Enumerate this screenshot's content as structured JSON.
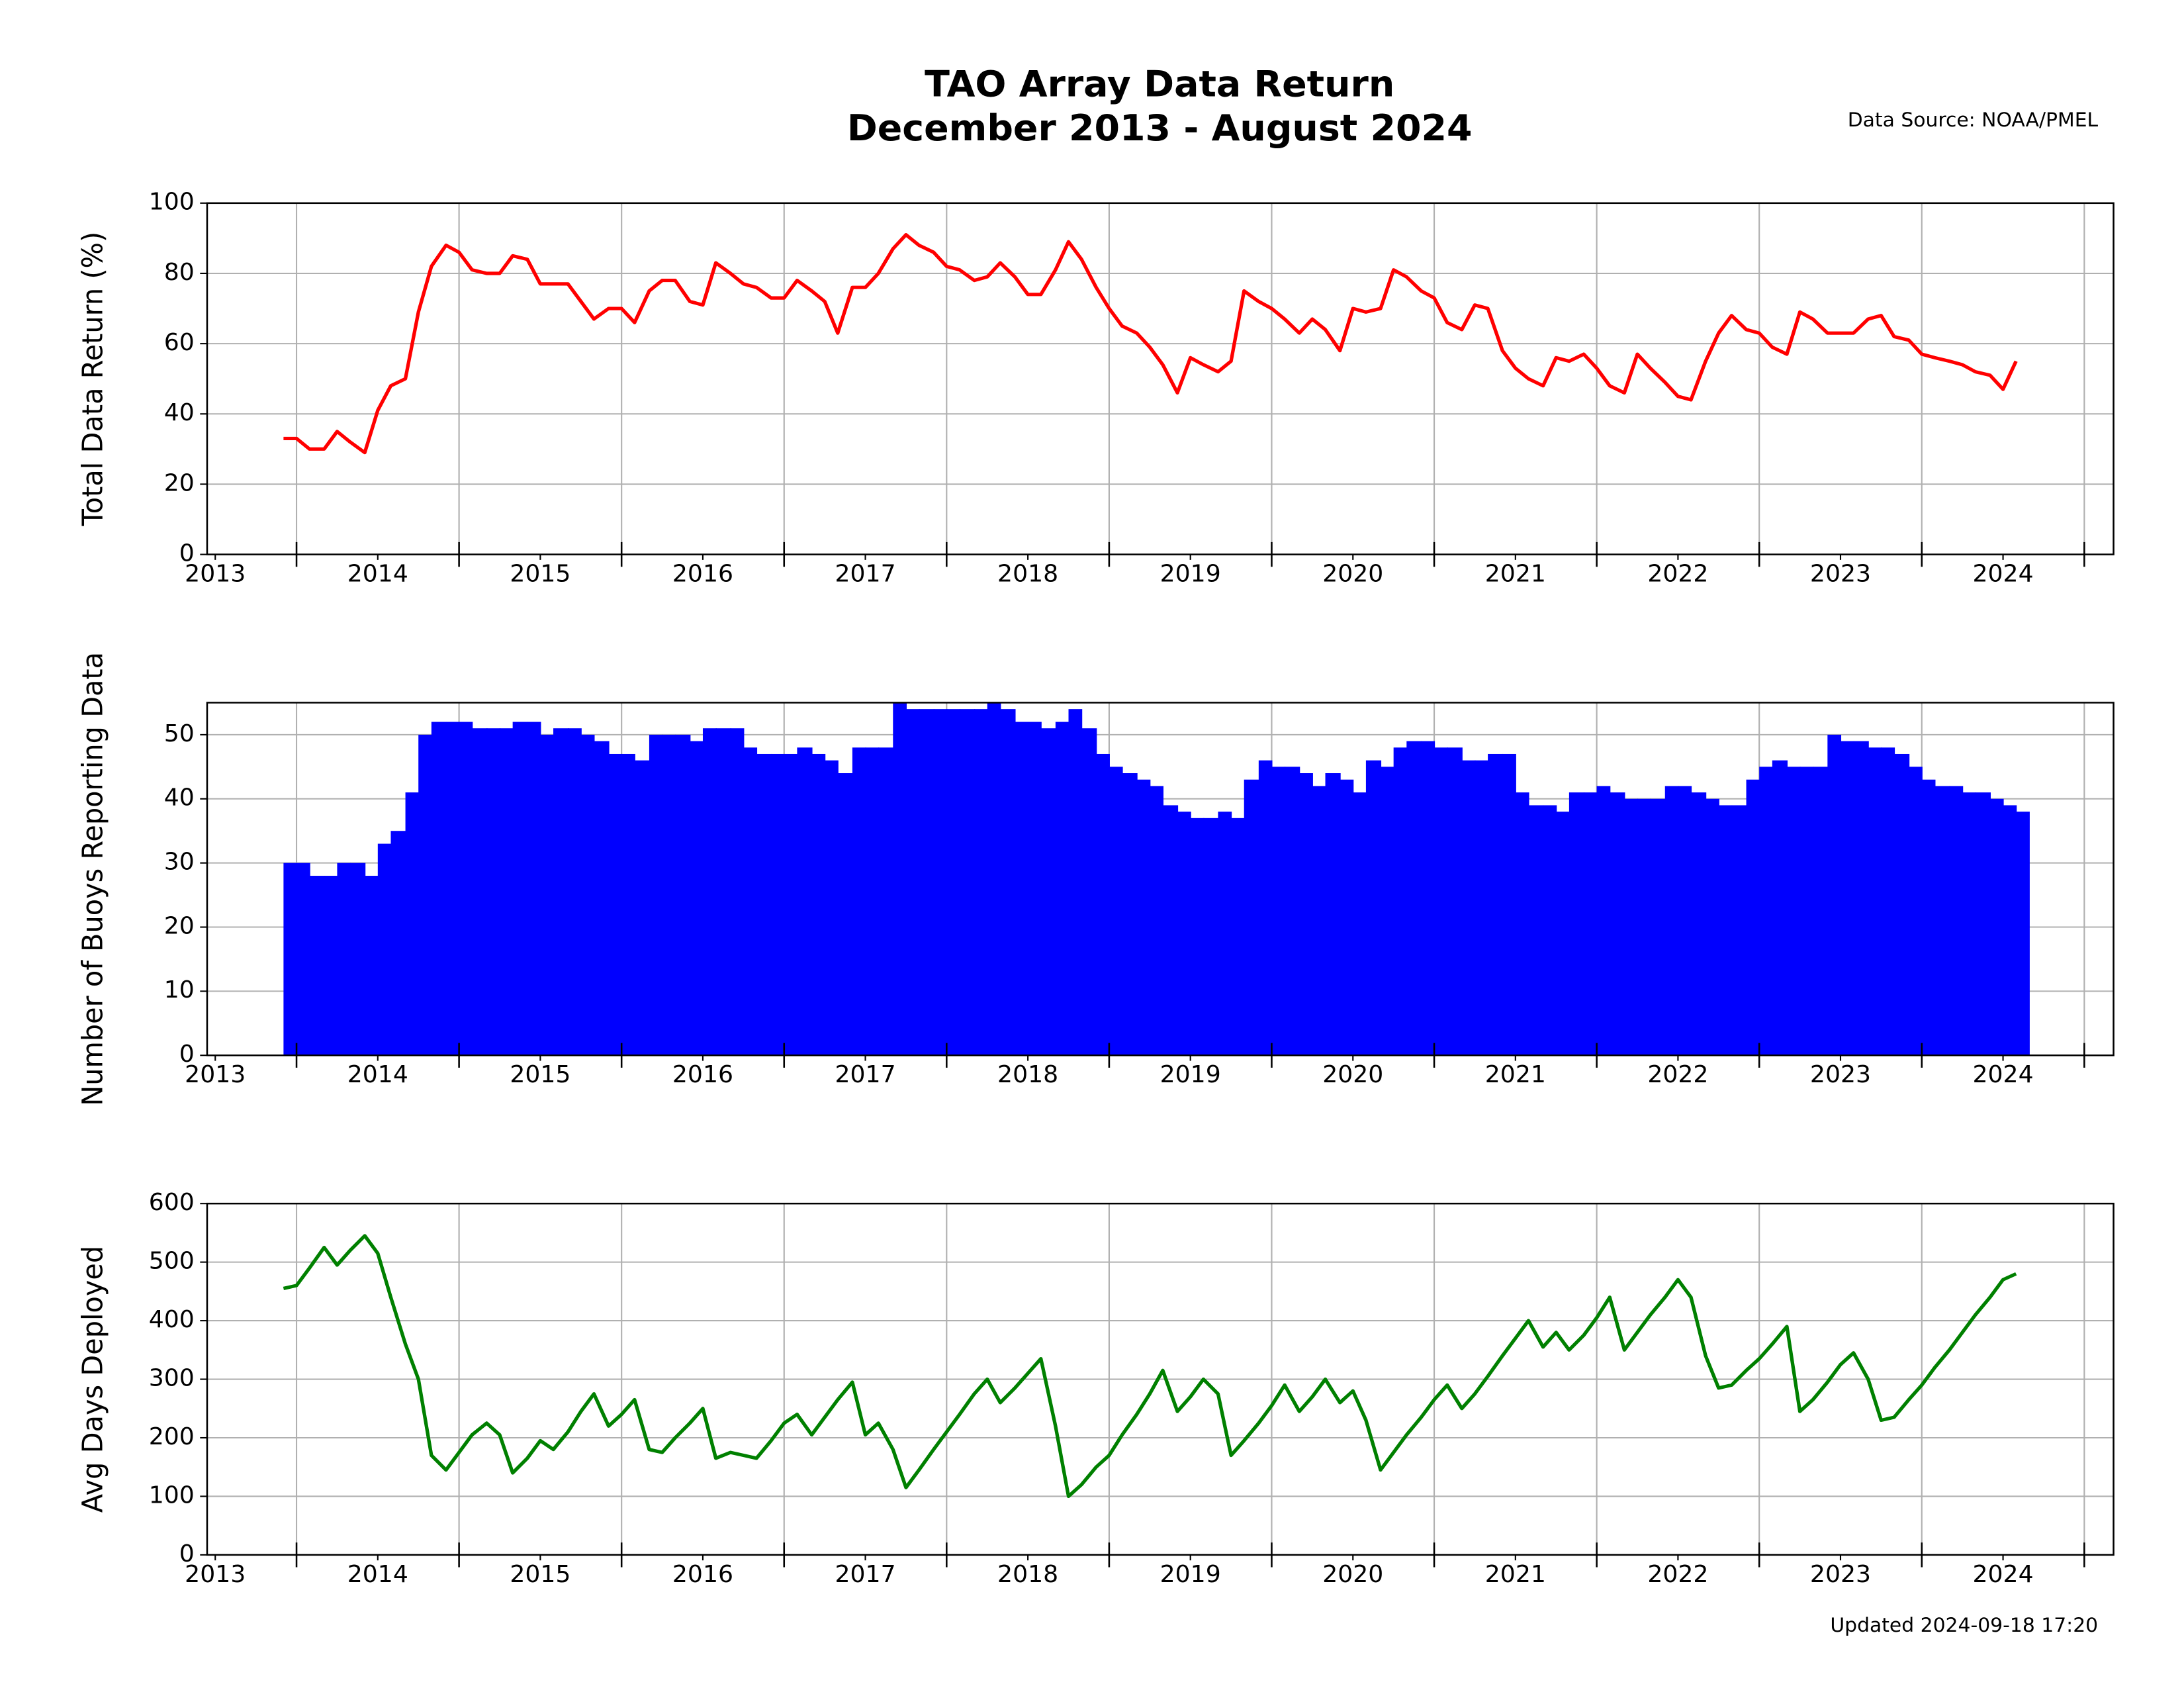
{
  "title": "TAO Array Data Return",
  "subtitle": "December 2013 - August 2024",
  "source": "Data Source: NOAA/PMEL",
  "updated": "Updated 2024-09-18 17:20",
  "chart_data": [
    {
      "type": "line",
      "ylabel": "Total Data Return (%)",
      "color": "#ff0000",
      "grid": true,
      "xlim": [
        2013.45,
        2025.18
      ],
      "ylim": [
        0,
        100
      ],
      "yticks": [
        0,
        20,
        40,
        60,
        80,
        100
      ],
      "x_major_ticks": [
        2014,
        2015,
        2016,
        2017,
        2018,
        2019,
        2020,
        2021,
        2022,
        2023,
        2024,
        2025
      ],
      "xticks": [
        {
          "value": 2013.5,
          "label": "2013"
        },
        {
          "value": 2014.5,
          "label": "2014"
        },
        {
          "value": 2015.5,
          "label": "2015"
        },
        {
          "value": 2016.5,
          "label": "2016"
        },
        {
          "value": 2017.5,
          "label": "2017"
        },
        {
          "value": 2018.5,
          "label": "2018"
        },
        {
          "value": 2019.5,
          "label": "2019"
        },
        {
          "value": 2020.5,
          "label": "2020"
        },
        {
          "value": 2021.5,
          "label": "2021"
        },
        {
          "value": 2022.5,
          "label": "2022"
        },
        {
          "value": 2023.5,
          "label": "2023"
        },
        {
          "value": 2024.5,
          "label": "2024"
        }
      ],
      "x": [
        2013.92,
        2014.0,
        2014.08,
        2014.17,
        2014.25,
        2014.33,
        2014.42,
        2014.5,
        2014.58,
        2014.67,
        2014.75,
        2014.83,
        2014.92,
        2015.0,
        2015.08,
        2015.17,
        2015.25,
        2015.33,
        2015.42,
        2015.5,
        2015.58,
        2015.67,
        2015.75,
        2015.83,
        2015.92,
        2016.0,
        2016.08,
        2016.17,
        2016.25,
        2016.33,
        2016.42,
        2016.5,
        2016.58,
        2016.67,
        2016.75,
        2016.83,
        2016.92,
        2017.0,
        2017.08,
        2017.17,
        2017.25,
        2017.33,
        2017.42,
        2017.5,
        2017.58,
        2017.67,
        2017.75,
        2017.83,
        2017.92,
        2018.0,
        2018.08,
        2018.17,
        2018.25,
        2018.33,
        2018.42,
        2018.5,
        2018.58,
        2018.67,
        2018.75,
        2018.83,
        2018.92,
        2019.0,
        2019.08,
        2019.17,
        2019.25,
        2019.33,
        2019.42,
        2019.5,
        2019.58,
        2019.67,
        2019.75,
        2019.83,
        2019.92,
        2020.0,
        2020.08,
        2020.17,
        2020.25,
        2020.33,
        2020.42,
        2020.5,
        2020.58,
        2020.67,
        2020.75,
        2020.83,
        2020.92,
        2021.0,
        2021.08,
        2021.17,
        2021.25,
        2021.33,
        2021.42,
        2021.5,
        2021.58,
        2021.67,
        2021.75,
        2021.83,
        2021.92,
        2022.0,
        2022.08,
        2022.17,
        2022.25,
        2022.33,
        2022.42,
        2022.5,
        2022.58,
        2022.67,
        2022.75,
        2022.83,
        2022.92,
        2023.0,
        2023.08,
        2023.17,
        2023.25,
        2023.33,
        2023.42,
        2023.5,
        2023.58,
        2023.67,
        2023.75,
        2023.83,
        2023.92,
        2024.0,
        2024.08,
        2024.17,
        2024.25,
        2024.33,
        2024.42,
        2024.5,
        2024.58
      ],
      "values": [
        33,
        33,
        30,
        30,
        35,
        32,
        29,
        41,
        48,
        50,
        69,
        82,
        88,
        86,
        81,
        80,
        80,
        85,
        84,
        77,
        77,
        77,
        72,
        67,
        70,
        70,
        66,
        75,
        78,
        78,
        72,
        71,
        83,
        80,
        77,
        76,
        73,
        73,
        78,
        75,
        72,
        63,
        76,
        76,
        80,
        87,
        91,
        88,
        86,
        82,
        81,
        78,
        79,
        83,
        79,
        74,
        74,
        81,
        89,
        84,
        76,
        70,
        65,
        63,
        59,
        54,
        46,
        56,
        54,
        52,
        55,
        75,
        72,
        70,
        67,
        63,
        67,
        64,
        58,
        70,
        69,
        70,
        81,
        79,
        75,
        73,
        66,
        64,
        71,
        70,
        58,
        53,
        50,
        48,
        56,
        55,
        57,
        53,
        48,
        46,
        57,
        53,
        49,
        45,
        44,
        55,
        63,
        68,
        64,
        63,
        59,
        57,
        69,
        67,
        63,
        63,
        63,
        67,
        68,
        62,
        61,
        57,
        56,
        55,
        54,
        52,
        51,
        47,
        55
      ]
    },
    {
      "type": "bar",
      "ylabel": "Number of Buoys Reporting Data",
      "color": "#0000ff",
      "grid": true,
      "xlim": [
        2013.45,
        2025.18
      ],
      "ylim": [
        0,
        55
      ],
      "yticks": [
        0,
        10,
        20,
        30,
        40,
        50
      ],
      "x_major_ticks": [
        2014,
        2015,
        2016,
        2017,
        2018,
        2019,
        2020,
        2021,
        2022,
        2023,
        2024,
        2025
      ],
      "xticks": [
        {
          "value": 2013.5,
          "label": "2013"
        },
        {
          "value": 2014.5,
          "label": "2014"
        },
        {
          "value": 2015.5,
          "label": "2015"
        },
        {
          "value": 2016.5,
          "label": "2016"
        },
        {
          "value": 2017.5,
          "label": "2017"
        },
        {
          "value": 2018.5,
          "label": "2018"
        },
        {
          "value": 2019.5,
          "label": "2019"
        },
        {
          "value": 2020.5,
          "label": "2020"
        },
        {
          "value": 2021.5,
          "label": "2021"
        },
        {
          "value": 2022.5,
          "label": "2022"
        },
        {
          "value": 2023.5,
          "label": "2023"
        },
        {
          "value": 2024.5,
          "label": "2024"
        }
      ],
      "x": [
        2013.92,
        2014.0,
        2014.08,
        2014.17,
        2014.25,
        2014.33,
        2014.42,
        2014.5,
        2014.58,
        2014.67,
        2014.75,
        2014.83,
        2014.92,
        2015.0,
        2015.08,
        2015.17,
        2015.25,
        2015.33,
        2015.42,
        2015.5,
        2015.58,
        2015.67,
        2015.75,
        2015.83,
        2015.92,
        2016.0,
        2016.08,
        2016.17,
        2016.25,
        2016.33,
        2016.42,
        2016.5,
        2016.58,
        2016.67,
        2016.75,
        2016.83,
        2016.92,
        2017.0,
        2017.08,
        2017.17,
        2017.25,
        2017.33,
        2017.42,
        2017.5,
        2017.58,
        2017.67,
        2017.75,
        2017.83,
        2017.92,
        2018.0,
        2018.08,
        2018.17,
        2018.25,
        2018.33,
        2018.42,
        2018.5,
        2018.58,
        2018.67,
        2018.75,
        2018.83,
        2018.92,
        2019.0,
        2019.08,
        2019.17,
        2019.25,
        2019.33,
        2019.42,
        2019.5,
        2019.58,
        2019.67,
        2019.75,
        2019.83,
        2019.92,
        2020.0,
        2020.08,
        2020.17,
        2020.25,
        2020.33,
        2020.42,
        2020.5,
        2020.58,
        2020.67,
        2020.75,
        2020.83,
        2020.92,
        2021.0,
        2021.08,
        2021.17,
        2021.25,
        2021.33,
        2021.42,
        2021.5,
        2021.58,
        2021.67,
        2021.75,
        2021.83,
        2021.92,
        2022.0,
        2022.08,
        2022.17,
        2022.25,
        2022.33,
        2022.42,
        2022.5,
        2022.58,
        2022.67,
        2022.75,
        2022.83,
        2022.92,
        2023.0,
        2023.08,
        2023.17,
        2023.25,
        2023.33,
        2023.42,
        2023.5,
        2023.58,
        2023.67,
        2023.75,
        2023.83,
        2023.92,
        2024.0,
        2024.08,
        2024.17,
        2024.25,
        2024.33,
        2024.42,
        2024.5,
        2024.58
      ],
      "values": [
        30,
        30,
        28,
        28,
        30,
        30,
        28,
        33,
        35,
        41,
        50,
        52,
        52,
        52,
        51,
        51,
        51,
        52,
        52,
        50,
        51,
        51,
        50,
        49,
        47,
        47,
        46,
        50,
        50,
        50,
        49,
        51,
        51,
        51,
        48,
        47,
        47,
        47,
        48,
        47,
        46,
        44,
        48,
        48,
        48,
        55,
        54,
        54,
        54,
        54,
        54,
        54,
        55,
        54,
        52,
        52,
        51,
        52,
        54,
        51,
        47,
        45,
        44,
        43,
        42,
        39,
        38,
        37,
        37,
        38,
        37,
        43,
        46,
        45,
        45,
        44,
        42,
        44,
        43,
        41,
        46,
        45,
        48,
        49,
        49,
        48,
        48,
        46,
        46,
        47,
        47,
        41,
        39,
        39,
        38,
        41,
        41,
        42,
        41,
        40,
        40,
        40,
        42,
        42,
        41,
        40,
        39,
        39,
        43,
        45,
        46,
        45,
        45,
        45,
        50,
        49,
        49,
        48,
        48,
        47,
        45,
        43,
        42,
        42,
        41,
        41,
        40,
        39,
        38
      ]
    },
    {
      "type": "line",
      "ylabel": "Avg Days Deployed",
      "color": "#008000",
      "grid": true,
      "xlim": [
        2013.45,
        2025.18
      ],
      "ylim": [
        0,
        600
      ],
      "yticks": [
        0,
        100,
        200,
        300,
        400,
        500,
        600
      ],
      "x_major_ticks": [
        2014,
        2015,
        2016,
        2017,
        2018,
        2019,
        2020,
        2021,
        2022,
        2023,
        2024,
        2025
      ],
      "xticks": [
        {
          "value": 2013.5,
          "label": "2013"
        },
        {
          "value": 2014.5,
          "label": "2014"
        },
        {
          "value": 2015.5,
          "label": "2015"
        },
        {
          "value": 2016.5,
          "label": "2016"
        },
        {
          "value": 2017.5,
          "label": "2017"
        },
        {
          "value": 2018.5,
          "label": "2018"
        },
        {
          "value": 2019.5,
          "label": "2019"
        },
        {
          "value": 2020.5,
          "label": "2020"
        },
        {
          "value": 2021.5,
          "label": "2021"
        },
        {
          "value": 2022.5,
          "label": "2022"
        },
        {
          "value": 2023.5,
          "label": "2023"
        },
        {
          "value": 2024.5,
          "label": "2024"
        }
      ],
      "x": [
        2013.92,
        2014.0,
        2014.08,
        2014.17,
        2014.25,
        2014.33,
        2014.42,
        2014.5,
        2014.58,
        2014.67,
        2014.75,
        2014.83,
        2014.92,
        2015.0,
        2015.08,
        2015.17,
        2015.25,
        2015.33,
        2015.42,
        2015.5,
        2015.58,
        2015.67,
        2015.75,
        2015.83,
        2015.92,
        2016.0,
        2016.08,
        2016.17,
        2016.25,
        2016.33,
        2016.42,
        2016.5,
        2016.58,
        2016.67,
        2016.75,
        2016.83,
        2016.92,
        2017.0,
        2017.08,
        2017.17,
        2017.25,
        2017.33,
        2017.42,
        2017.5,
        2017.58,
        2017.67,
        2017.75,
        2017.83,
        2017.92,
        2018.0,
        2018.08,
        2018.17,
        2018.25,
        2018.33,
        2018.42,
        2018.5,
        2018.58,
        2018.67,
        2018.75,
        2018.83,
        2018.92,
        2019.0,
        2019.08,
        2019.17,
        2019.25,
        2019.33,
        2019.42,
        2019.5,
        2019.58,
        2019.67,
        2019.75,
        2019.83,
        2019.92,
        2020.0,
        2020.08,
        2020.17,
        2020.25,
        2020.33,
        2020.42,
        2020.5,
        2020.58,
        2020.67,
        2020.75,
        2020.83,
        2020.92,
        2021.0,
        2021.08,
        2021.17,
        2021.25,
        2021.33,
        2021.42,
        2021.5,
        2021.58,
        2021.67,
        2021.75,
        2021.83,
        2021.92,
        2022.0,
        2022.08,
        2022.17,
        2022.25,
        2022.33,
        2022.42,
        2022.5,
        2022.58,
        2022.67,
        2022.75,
        2022.83,
        2022.92,
        2023.0,
        2023.08,
        2023.17,
        2023.25,
        2023.33,
        2023.42,
        2023.5,
        2023.58,
        2023.67,
        2023.75,
        2023.83,
        2023.92,
        2024.0,
        2024.08,
        2024.17,
        2024.25,
        2024.33,
        2024.42,
        2024.5,
        2024.58
      ],
      "values": [
        455,
        460,
        490,
        525,
        495,
        520,
        545,
        515,
        440,
        360,
        300,
        170,
        145,
        175,
        205,
        225,
        205,
        140,
        165,
        195,
        180,
        210,
        245,
        275,
        220,
        240,
        265,
        180,
        175,
        200,
        225,
        250,
        165,
        175,
        170,
        165,
        195,
        225,
        240,
        205,
        235,
        265,
        295,
        205,
        225,
        180,
        115,
        145,
        180,
        210,
        240,
        275,
        300,
        260,
        285,
        310,
        335,
        220,
        100,
        120,
        150,
        170,
        205,
        240,
        275,
        315,
        245,
        270,
        300,
        275,
        170,
        195,
        225,
        255,
        290,
        245,
        270,
        300,
        260,
        280,
        230,
        145,
        175,
        205,
        235,
        265,
        290,
        250,
        275,
        305,
        340,
        370,
        400,
        355,
        380,
        350,
        375,
        405,
        440,
        350,
        380,
        410,
        440,
        470,
        440,
        340,
        285,
        290,
        315,
        335,
        360,
        390,
        245,
        265,
        295,
        325,
        345,
        300,
        230,
        235,
        265,
        290,
        320,
        350,
        380,
        410,
        440,
        470,
        480
      ]
    }
  ]
}
